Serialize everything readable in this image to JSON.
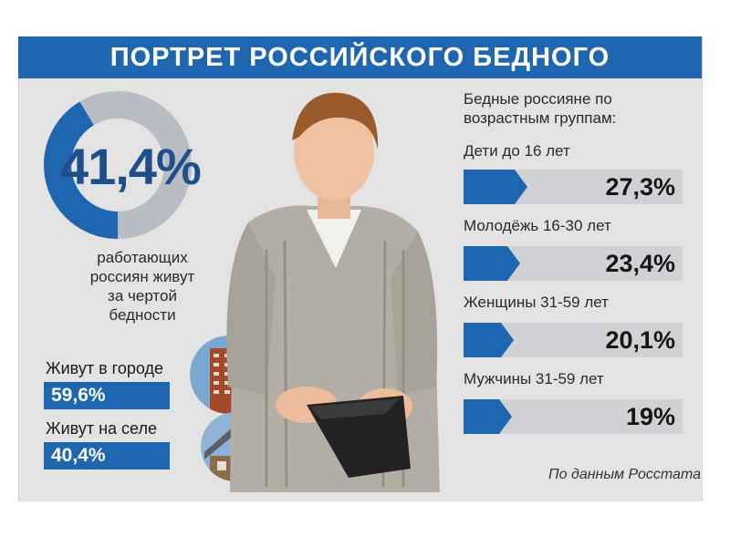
{
  "title": "ПОРТРЕТ РОССИЙСКОГО БЕДНОГО",
  "working_poor": {
    "value": "41,4%",
    "fraction": 0.414,
    "caption": [
      "работающих",
      "россиян живут",
      "за чертой",
      "бедности"
    ]
  },
  "residence": [
    {
      "label": "Живут в городе",
      "value": "59,6%"
    },
    {
      "label": "Живут на селе",
      "value": "40,4%"
    }
  ],
  "source": "По данным Росстата",
  "colors": {
    "accent": "#1f66b0",
    "dark_blue": "#1e4f8b",
    "track": "#cfd1d4",
    "panel": "#e3e3e4"
  },
  "chart_data": {
    "type": "bar",
    "title": "Бедные россияне по возрастным группам:",
    "categories": [
      "Дети до 16 лет",
      "Молодёжь 16-30 лет",
      "Женщины 31-59 лет",
      "Мужчины 31-59 лет"
    ],
    "values": [
      27.3,
      23.4,
      20.1,
      19
    ],
    "value_labels": [
      "27,3%",
      "23,4%",
      "20,1%",
      "19%"
    ],
    "unit": "%",
    "xlim": [
      0,
      100
    ],
    "orientation": "horizontal",
    "legend": "none",
    "grid": false
  }
}
